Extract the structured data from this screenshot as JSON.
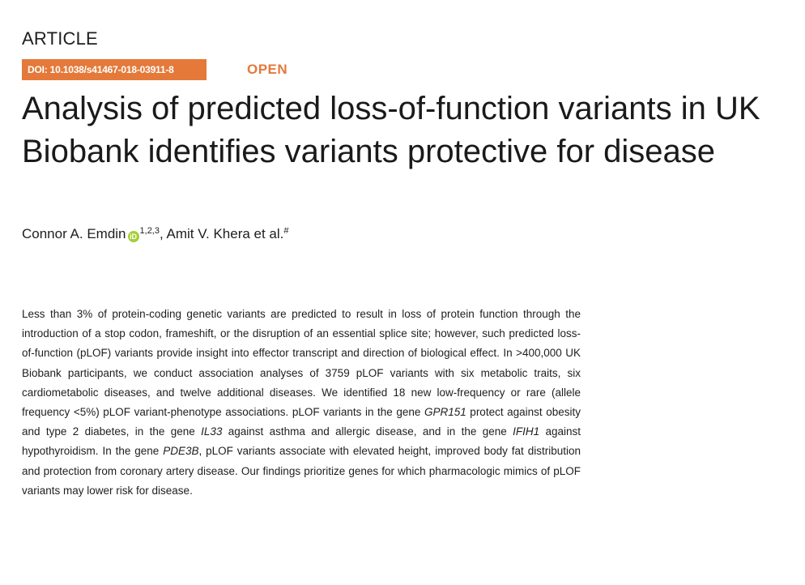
{
  "article_label": "ARTICLE",
  "doi": "DOI: 10.1038/s41467-018-03911-8",
  "open_label": "OPEN",
  "title": "Analysis of predicted loss-of-function variants in UK Biobank identifies variants protective for disease",
  "authors": {
    "first_author": "Connor A. Emdin",
    "first_author_affiliations": "1,2,3",
    "second_author_text": ", Amit V. Khera et al.",
    "second_author_mark": "#",
    "orcid_icon_letters": "iD"
  },
  "abstract": {
    "part1": "Less than 3% of protein-coding genetic variants are predicted to result in loss of protein function through the introduction of a stop codon, frameshift, or the disruption of an essential splice site; however, such predicted loss-of-function (pLOF) variants provide insight into effector transcript and direction of biological effect. In >400,000 UK Biobank participants, we conduct association analyses of 3759 pLOF variants with six metabolic traits, six cardiometabolic diseases, and twelve additional diseases. We identified 18 new low-frequency or rare (allele frequency <5%) pLOF variant-phenotype associations. pLOF variants in the gene ",
    "gene1": "GPR151",
    "part2": " protect against obesity and type 2 diabetes, in the gene ",
    "gene2": "IL33",
    "part3": " against asthma and allergic disease, and in the gene ",
    "gene3": "IFIH1",
    "part4": " against hypothyroidism. In the gene ",
    "gene4": "PDE3B",
    "part5": ", pLOF variants associate with elevated height, improved body fat distribution and protection from coronary artery disease. Our findings prioritize genes for which pharmacologic mimics of pLOF variants may lower risk for disease."
  },
  "colors": {
    "accent": "#e4793a",
    "orcid": "#a6ce39",
    "text": "#1a1a1a"
  }
}
